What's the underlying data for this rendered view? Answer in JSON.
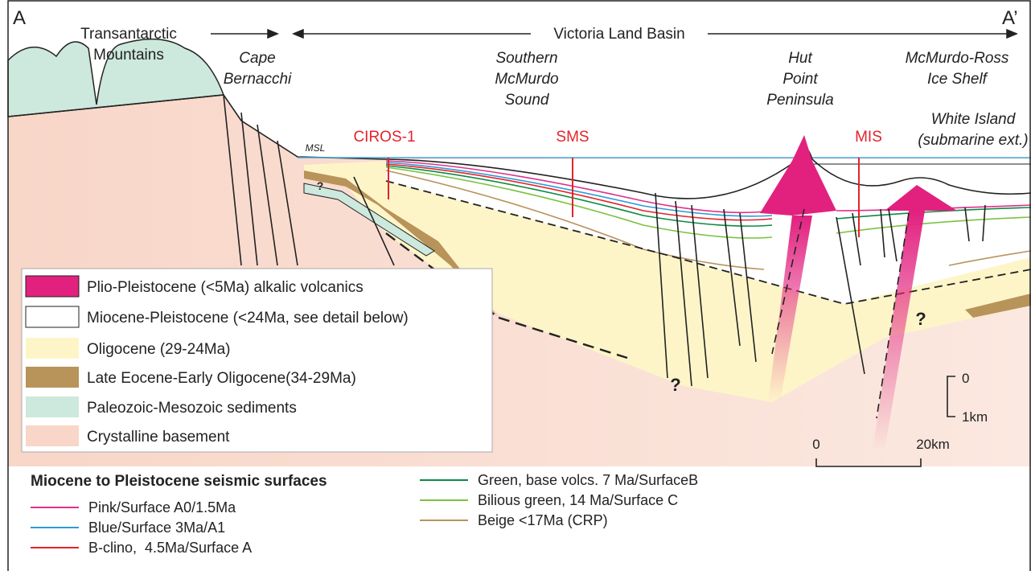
{
  "header": {
    "left_end": "A",
    "right_end": "A’",
    "basin": "Victoria Land Basin"
  },
  "places": [
    {
      "lines": [
        "Transantarctic",
        "Mountains"
      ]
    },
    {
      "lines": [
        "Cape",
        "Bernacchi"
      ]
    },
    {
      "lines": [
        "Southern",
        "McMurdo",
        "Sound"
      ]
    },
    {
      "lines": [
        "Hut",
        "Point",
        "Peninsula"
      ]
    },
    {
      "lines": [
        "McMurdo-Ross",
        "Ice Shelf"
      ]
    },
    {
      "lines": [
        "White Island",
        "(submarine ext.)"
      ]
    }
  ],
  "msl": "MSL",
  "wells": [
    "CIROS-1",
    "SMS",
    "MIS"
  ],
  "question_marks": [
    "?",
    "?",
    "?"
  ],
  "legend": {
    "items": [
      {
        "label": "Plio-Pleistocene (<5Ma) alkalic volcanics"
      },
      {
        "label": "Miocene-Pleistocene (<24Ma, see detail below)"
      },
      {
        "label": "Oligocene (29-24Ma)"
      },
      {
        "label": "Late Eocene-Early Oligocene(34-29Ma)"
      },
      {
        "label": "Paleozoic-Mesozoic sediments"
      },
      {
        "label": "Crystalline basement"
      }
    ]
  },
  "scale": {
    "vertical": [
      "0",
      "1km"
    ],
    "horizontal": [
      "0",
      "20km"
    ]
  },
  "surfaces": {
    "title": "Miocene to Pleistocene seismic surfaces",
    "items": [
      {
        "label": "Pink/Surface A0/1.5Ma"
      },
      {
        "label": "Blue/Surface 3Ma/A1"
      },
      {
        "label": "B-clino,  4.5Ma/Surface A"
      },
      {
        "label": "Green, base volcs. 7 Ma/SurfaceB"
      },
      {
        "label": "Bilious green, 14 Ma/Surface C"
      },
      {
        "label": "Beige <17Ma (CRP)"
      }
    ]
  }
}
